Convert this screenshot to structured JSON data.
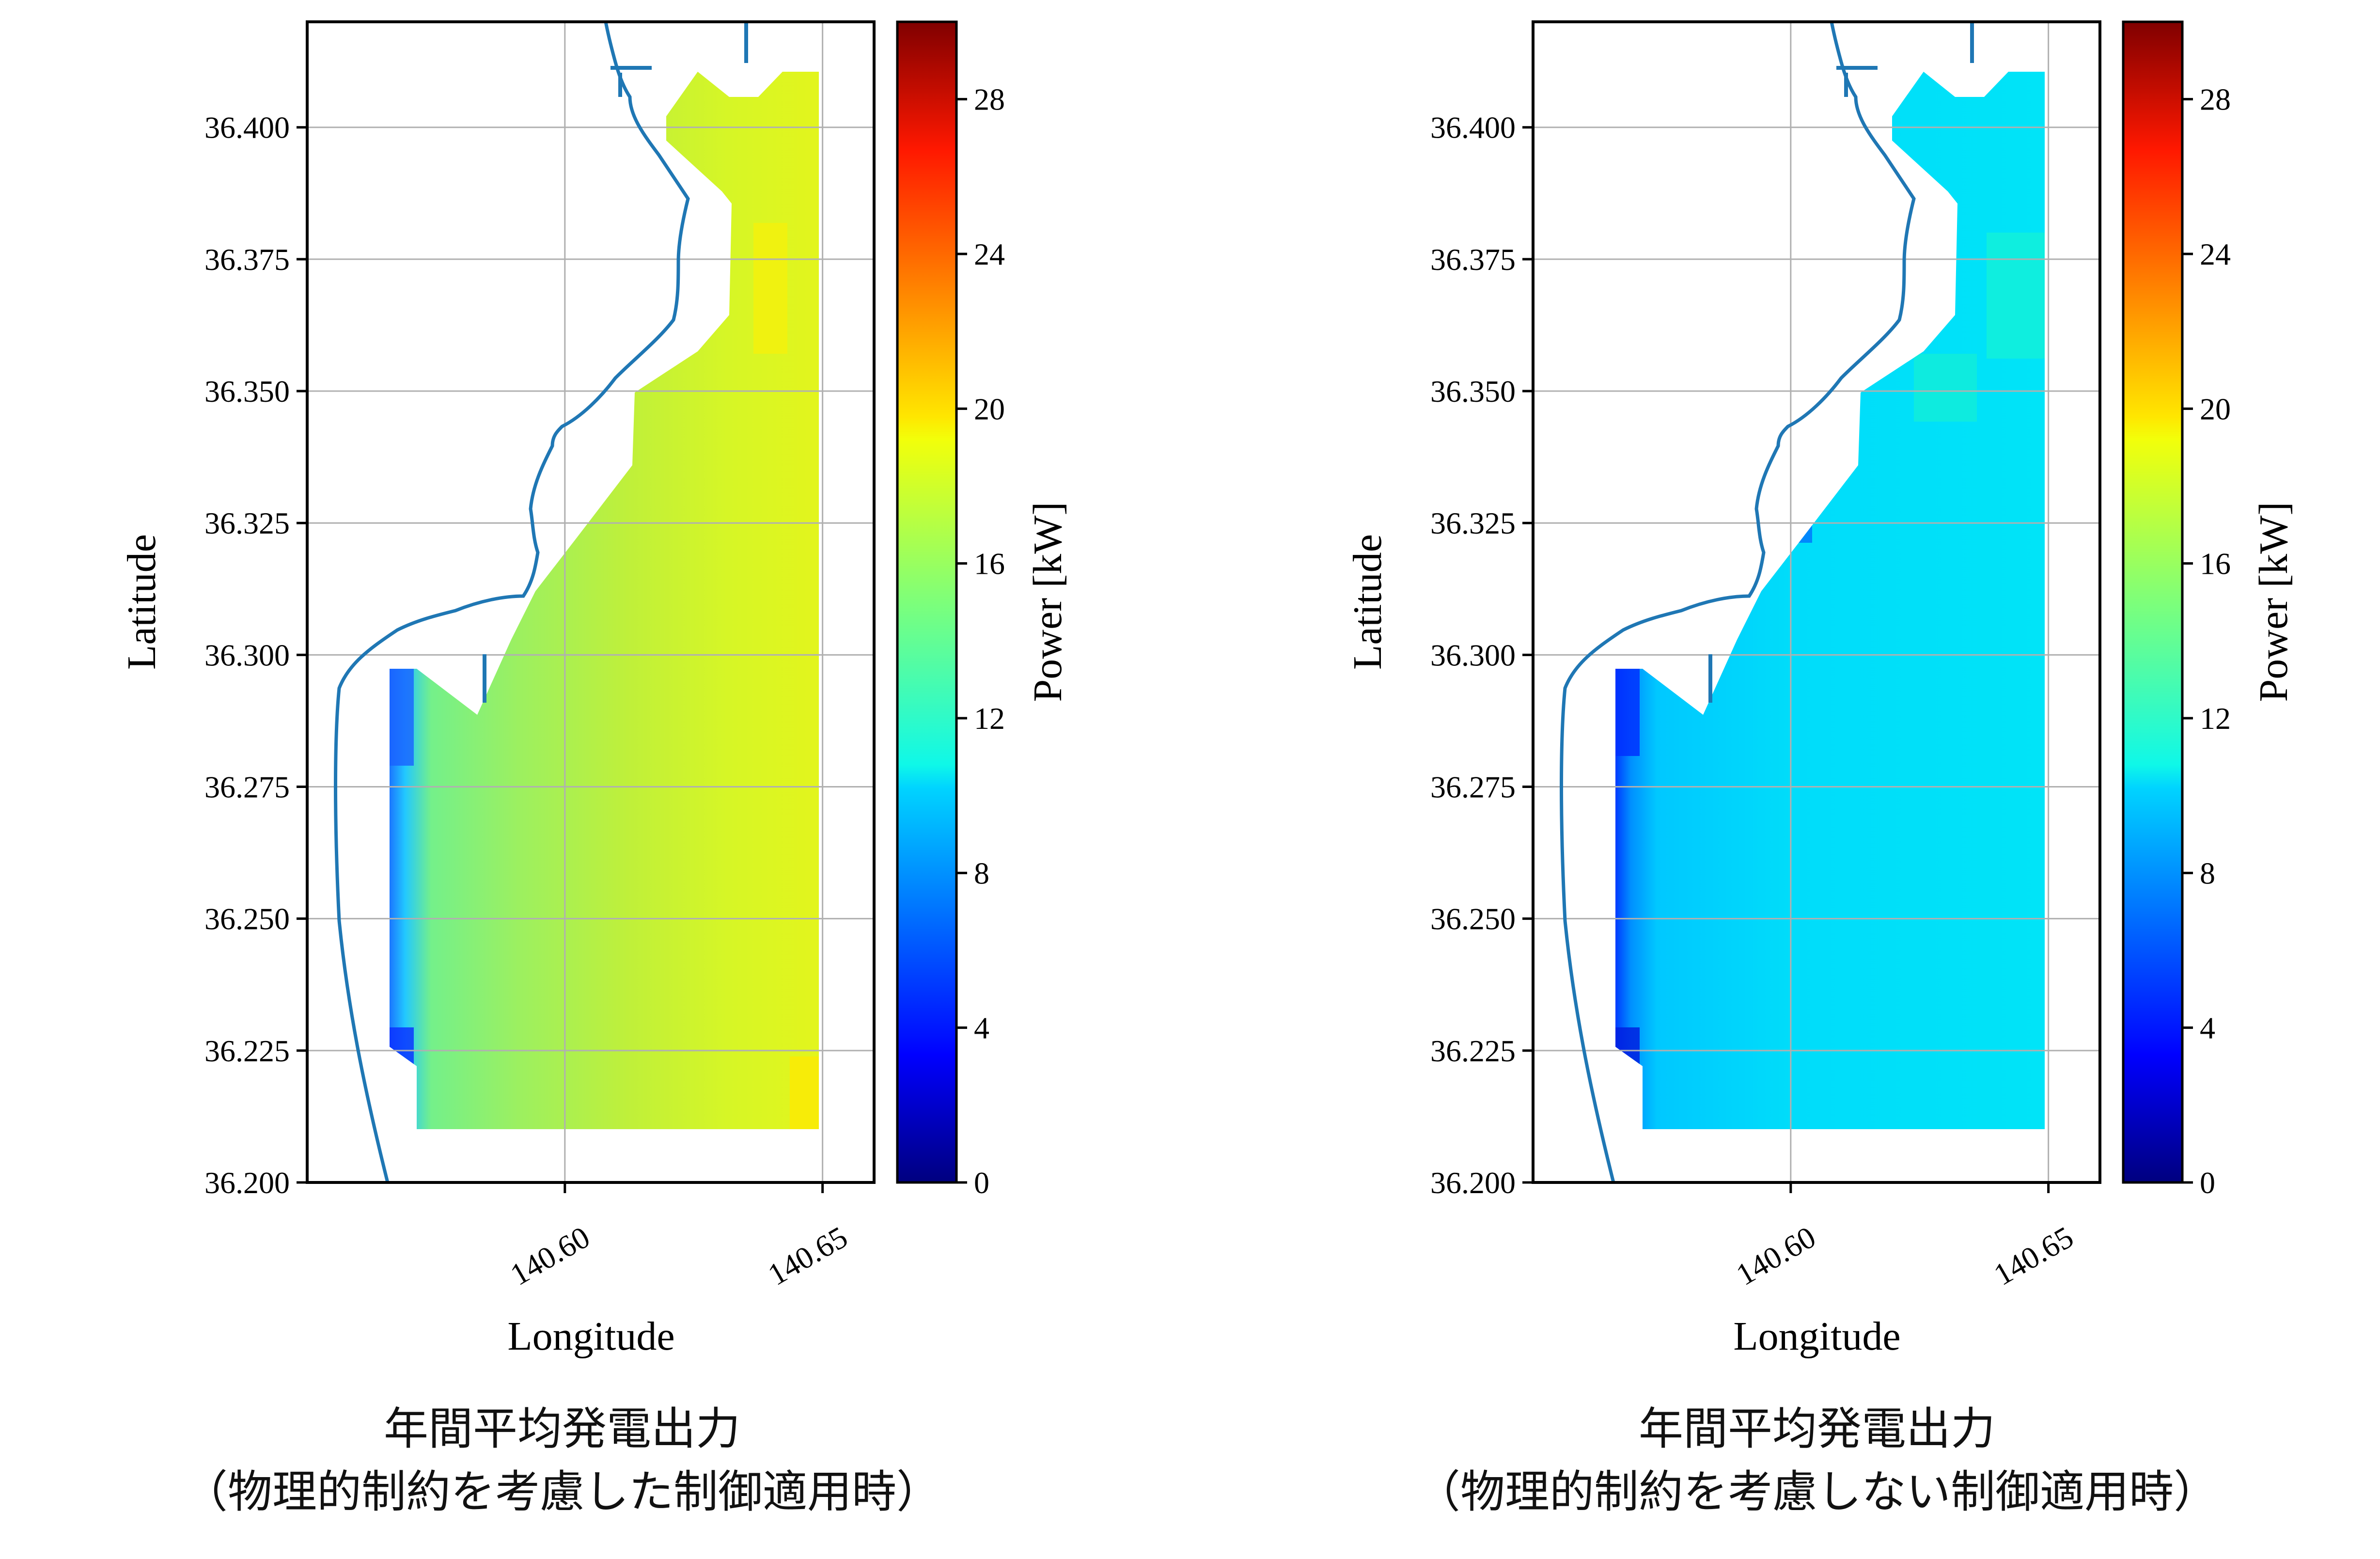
{
  "chart_data": [
    {
      "type": "heatmap",
      "xlabel": "Longitude",
      "ylabel": "Latitude",
      "x_ticks": [
        140.6,
        140.65
      ],
      "x_tick_labels": [
        "140.60",
        "140.65"
      ],
      "y_ticks": [
        36.2,
        36.225,
        36.25,
        36.275,
        36.3,
        36.325,
        36.35,
        36.375,
        36.4
      ],
      "y_tick_labels": [
        "36.200",
        "36.225",
        "36.250",
        "36.275",
        "36.300",
        "36.325",
        "36.350",
        "36.375",
        "36.400"
      ],
      "xlim": [
        140.55,
        140.66
      ],
      "ylim": [
        36.2,
        36.42
      ],
      "grid": true,
      "colorbar": {
        "label": "Power [kW]",
        "range": [
          0,
          30
        ],
        "ticks": [
          0,
          4,
          8,
          12,
          16,
          20,
          24,
          28
        ],
        "colormap": "jet"
      },
      "typical_power_kw": {
        "nearshore": 14,
        "mid": 17,
        "offshore": 18.5,
        "max": 19.5
      },
      "caption_line1": "年間平均発電出力",
      "caption_line2": "（物理的制約を考慮した制御適用時）"
    },
    {
      "type": "heatmap",
      "xlabel": "Longitude",
      "ylabel": "Latitude",
      "x_ticks": [
        140.6,
        140.65
      ],
      "x_tick_labels": [
        "140.60",
        "140.65"
      ],
      "y_ticks": [
        36.2,
        36.225,
        36.25,
        36.275,
        36.3,
        36.325,
        36.35,
        36.375,
        36.4
      ],
      "y_tick_labels": [
        "36.200",
        "36.225",
        "36.250",
        "36.275",
        "36.300",
        "36.325",
        "36.350",
        "36.375",
        "36.400"
      ],
      "xlim": [
        140.55,
        140.66
      ],
      "ylim": [
        36.2,
        36.42
      ],
      "grid": true,
      "colorbar": {
        "label": "Power [kW]",
        "range": [
          0,
          30
        ],
        "ticks": [
          0,
          4,
          8,
          12,
          16,
          20,
          24,
          28
        ],
        "colormap": "jet"
      },
      "typical_power_kw": {
        "nearshore": 9.5,
        "mid": 10.5,
        "offshore": 11,
        "max": 12
      },
      "caption_line1": "年間平均発電出力",
      "caption_line2": "（物理的制約を考慮しない制御適用時）"
    }
  ]
}
